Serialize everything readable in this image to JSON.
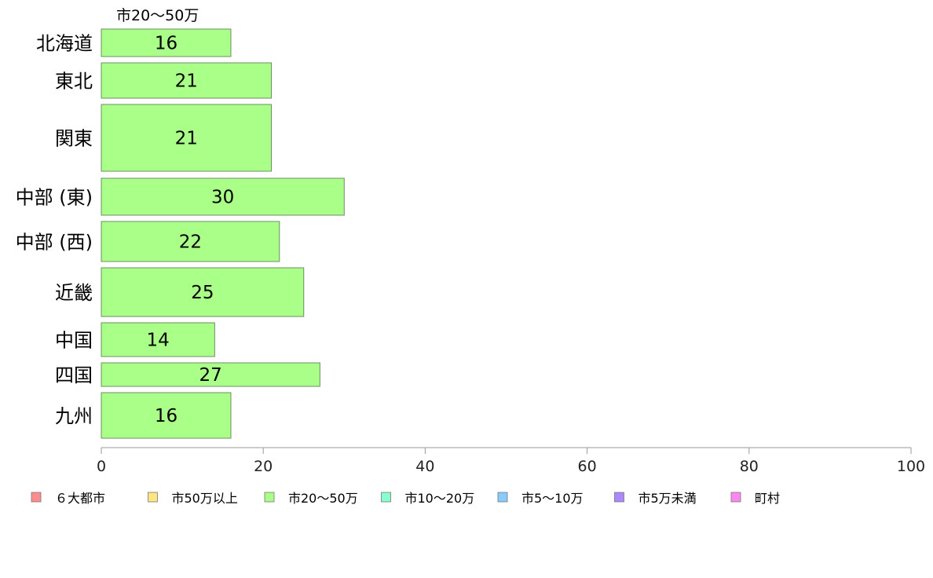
{
  "chart_data": {
    "type": "bar",
    "orientation": "horizontal",
    "series_title": "市20〜50万",
    "categories": [
      "北海道",
      "東北",
      "関東",
      "中部 (東)",
      "中部 (西)",
      "近畿",
      "中国",
      "四国",
      "九州"
    ],
    "series": [
      {
        "name": "市20〜50万",
        "color": "#aaff88",
        "values": [
          16,
          21,
          21,
          30,
          22,
          25,
          14,
          27,
          16
        ]
      }
    ],
    "xlim": [
      0,
      100
    ],
    "x_ticks": [
      "0",
      "20",
      "40",
      "60",
      "80",
      "100"
    ],
    "grid": false,
    "legend_position": "bottom",
    "legend": [
      {
        "label": "６大都市",
        "color": "#ff8c8c"
      },
      {
        "label": "市50万以上",
        "color": "#ffe680"
      },
      {
        "label": "市20〜50万",
        "color": "#aaff88"
      },
      {
        "label": "市10〜20万",
        "color": "#88ffcc"
      },
      {
        "label": "市5〜10万",
        "color": "#88ccff"
      },
      {
        "label": "市5万未満",
        "color": "#aa88ff"
      },
      {
        "label": "町村",
        "color": "#ff88ee"
      }
    ]
  }
}
